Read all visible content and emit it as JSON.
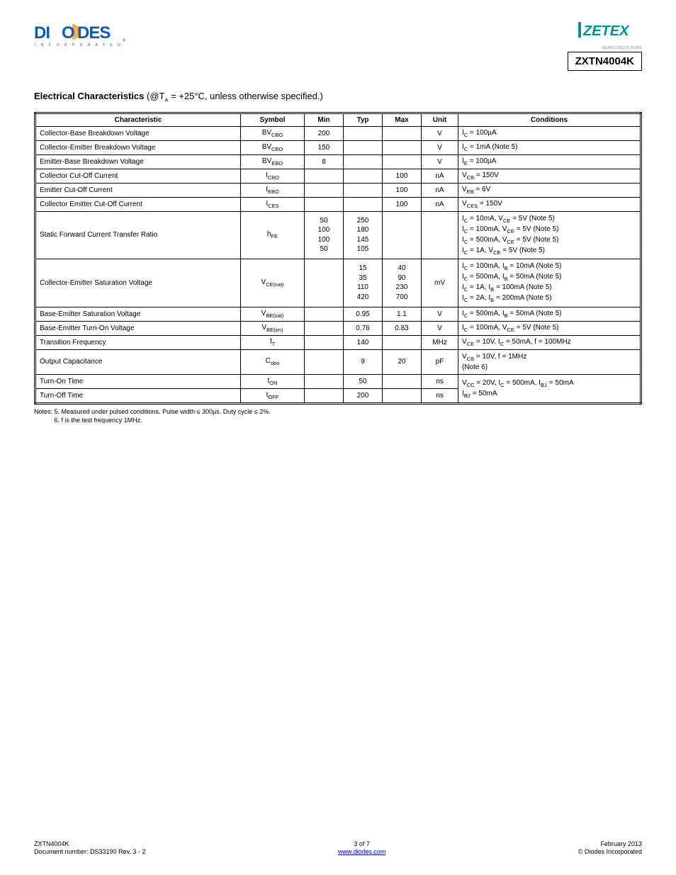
{
  "header": {
    "part_number": "ZXTN4004K",
    "zetex_sub": "SEMICONDUCTORS",
    "diodes_logo": {
      "blue": "#0b5cb3",
      "text_main": "DIODES",
      "text_sub": "I N C O R P O R A T E D",
      "reg": "®"
    },
    "zetex_logo": {
      "teal": "#00909e",
      "text": "ZETEX"
    }
  },
  "section": {
    "title": "Electrical Characteristics",
    "note": "(@T",
    "note_sub": "A",
    "note_tail": " = +25°C, unless otherwise specified.)"
  },
  "table": {
    "headers": [
      "Characteristic",
      "Symbol",
      "Min",
      "Typ",
      "Max",
      "Unit",
      "Conditions"
    ],
    "rows": [
      {
        "param": "Collector-Base Breakdown Voltage",
        "sym": "BV_CBO",
        "min": "200",
        "typ": "",
        "max": "",
        "unit": "V",
        "cond": "I_C = 100µA"
      },
      {
        "param": "Collector-Emitter Breakdown Voltage",
        "sym": "BV_CEO",
        "min": "150",
        "typ": "",
        "max": "",
        "unit": "V",
        "cond": "I_C = 1mA (Note 5)"
      },
      {
        "param": "Emitter-Base Breakdown Voltage",
        "sym": "BV_EBO",
        "min": "8",
        "typ": "",
        "max": "",
        "unit": "V",
        "cond": "I_E = 100µA"
      },
      {
        "param": "Collector Cut-Off Current",
        "sym": "I_CBO",
        "min": "",
        "typ": "",
        "max": "100",
        "unit": "nA",
        "cond": "V_CB = 150V"
      },
      {
        "param": "Emitter Cut-Off Current",
        "sym": "I_EBO",
        "min": "",
        "typ": "",
        "max": "100",
        "unit": "nA",
        "cond": "V_EB = 6V"
      },
      {
        "param": "Collector Emitter Cut-Off Current",
        "sym": "I_CES",
        "min": "",
        "typ": "",
        "max": "100",
        "unit": "nA",
        "cond": "V_CES = 150V"
      },
      {
        "param": "Static Forward Current Transfer Ratio",
        "sym": "h_FE",
        "min_lines": [
          "50",
          "100",
          "100",
          "50"
        ],
        "typ_lines": [
          "250",
          "180",
          "145",
          "105"
        ],
        "max_lines": [
          "",
          "",
          "",
          ""
        ],
        "unit": "",
        "cond_lines": [
          "I_C = 10mA, V_CE = 5V (Note 5)",
          "I_C = 100mA, V_CE = 5V (Note 5)",
          "I_C = 500mA, V_CE = 5V (Note 5)",
          "I_C = 1A, V_CE = 5V (Note 5)"
        ]
      },
      {
        "param": "Collector-Emitter Saturation Voltage",
        "sym": "V_CE(sat)",
        "min_lines": [
          "",
          "",
          "",
          ""
        ],
        "typ_lines": [
          "15",
          "35",
          "110",
          "420"
        ],
        "max_lines": [
          "40",
          "90",
          "230",
          "700"
        ],
        "unit": "mV",
        "cond_lines": [
          "I_C = 100mA, I_B = 10mA (Note 5)",
          "I_C = 500mA, I_B = 50mA (Note 5)",
          "I_C = 1A, I_B = 100mA (Note 5)",
          "I_C = 2A, I_B = 200mA (Note 5)"
        ]
      },
      {
        "param": "Base-Emitter Saturation Voltage",
        "sym": "V_BE(sat)",
        "min": "",
        "typ": "0.95",
        "max": "1.1",
        "unit": "V",
        "cond": "I_C = 500mA, I_B = 50mA (Note 5)"
      },
      {
        "param": "Base-Emitter Turn-On Voltage",
        "sym": "V_BE(on)",
        "min": "",
        "typ": "0.76",
        "max": "0.83",
        "unit": "V",
        "cond": "I_C = 100mA, V_CE = 5V (Note 5)"
      },
      {
        "param": "Transition Frequency",
        "sym": "f_T",
        "min": "",
        "typ": "140",
        "max": "",
        "unit": "MHz",
        "cond": "V_CE = 10V, I_C = 50mA, f = 100MHz"
      },
      {
        "param": "Output Capacitance",
        "sym": "C_obo",
        "min": "",
        "typ": "9",
        "max": "20",
        "unit": "pF",
        "cond_lines": [
          "V_CB = 10V, f = 1MHz",
          "(Note 6)"
        ]
      },
      {
        "param": "Turn-On Time",
        "sym": "t_ON",
        "min": "",
        "typ": "50",
        "max": "",
        "unit": "ns",
        "cond_lines": [
          "V_CC = 20V, I_C = 500mA, I_B1 = 50mA",
          "I_B2 = 50mA"
        ],
        "rowspan_cond": true
      },
      {
        "param": "Turn-Off Time",
        "sym": "t_OFF",
        "min": "",
        "typ": "200",
        "max": "",
        "unit": "ns"
      }
    ]
  },
  "notes": {
    "label": "Notes:",
    "n5": "5. Measured under pulsed conditions. Pulse width ≤ 300µs. Duty cycle ≤ 2%.",
    "n6": "6. f is the test frequency 1MHz."
  },
  "footer": {
    "left_line1": "ZXTN4004K",
    "left_line2": "Document number: DS33190 Rev. 3 - 2",
    "center_line1": "3 of 7",
    "center_link": "www.diodes.com",
    "right_line1": "February 2013",
    "right_line2": "© Diodes Incorporated"
  }
}
